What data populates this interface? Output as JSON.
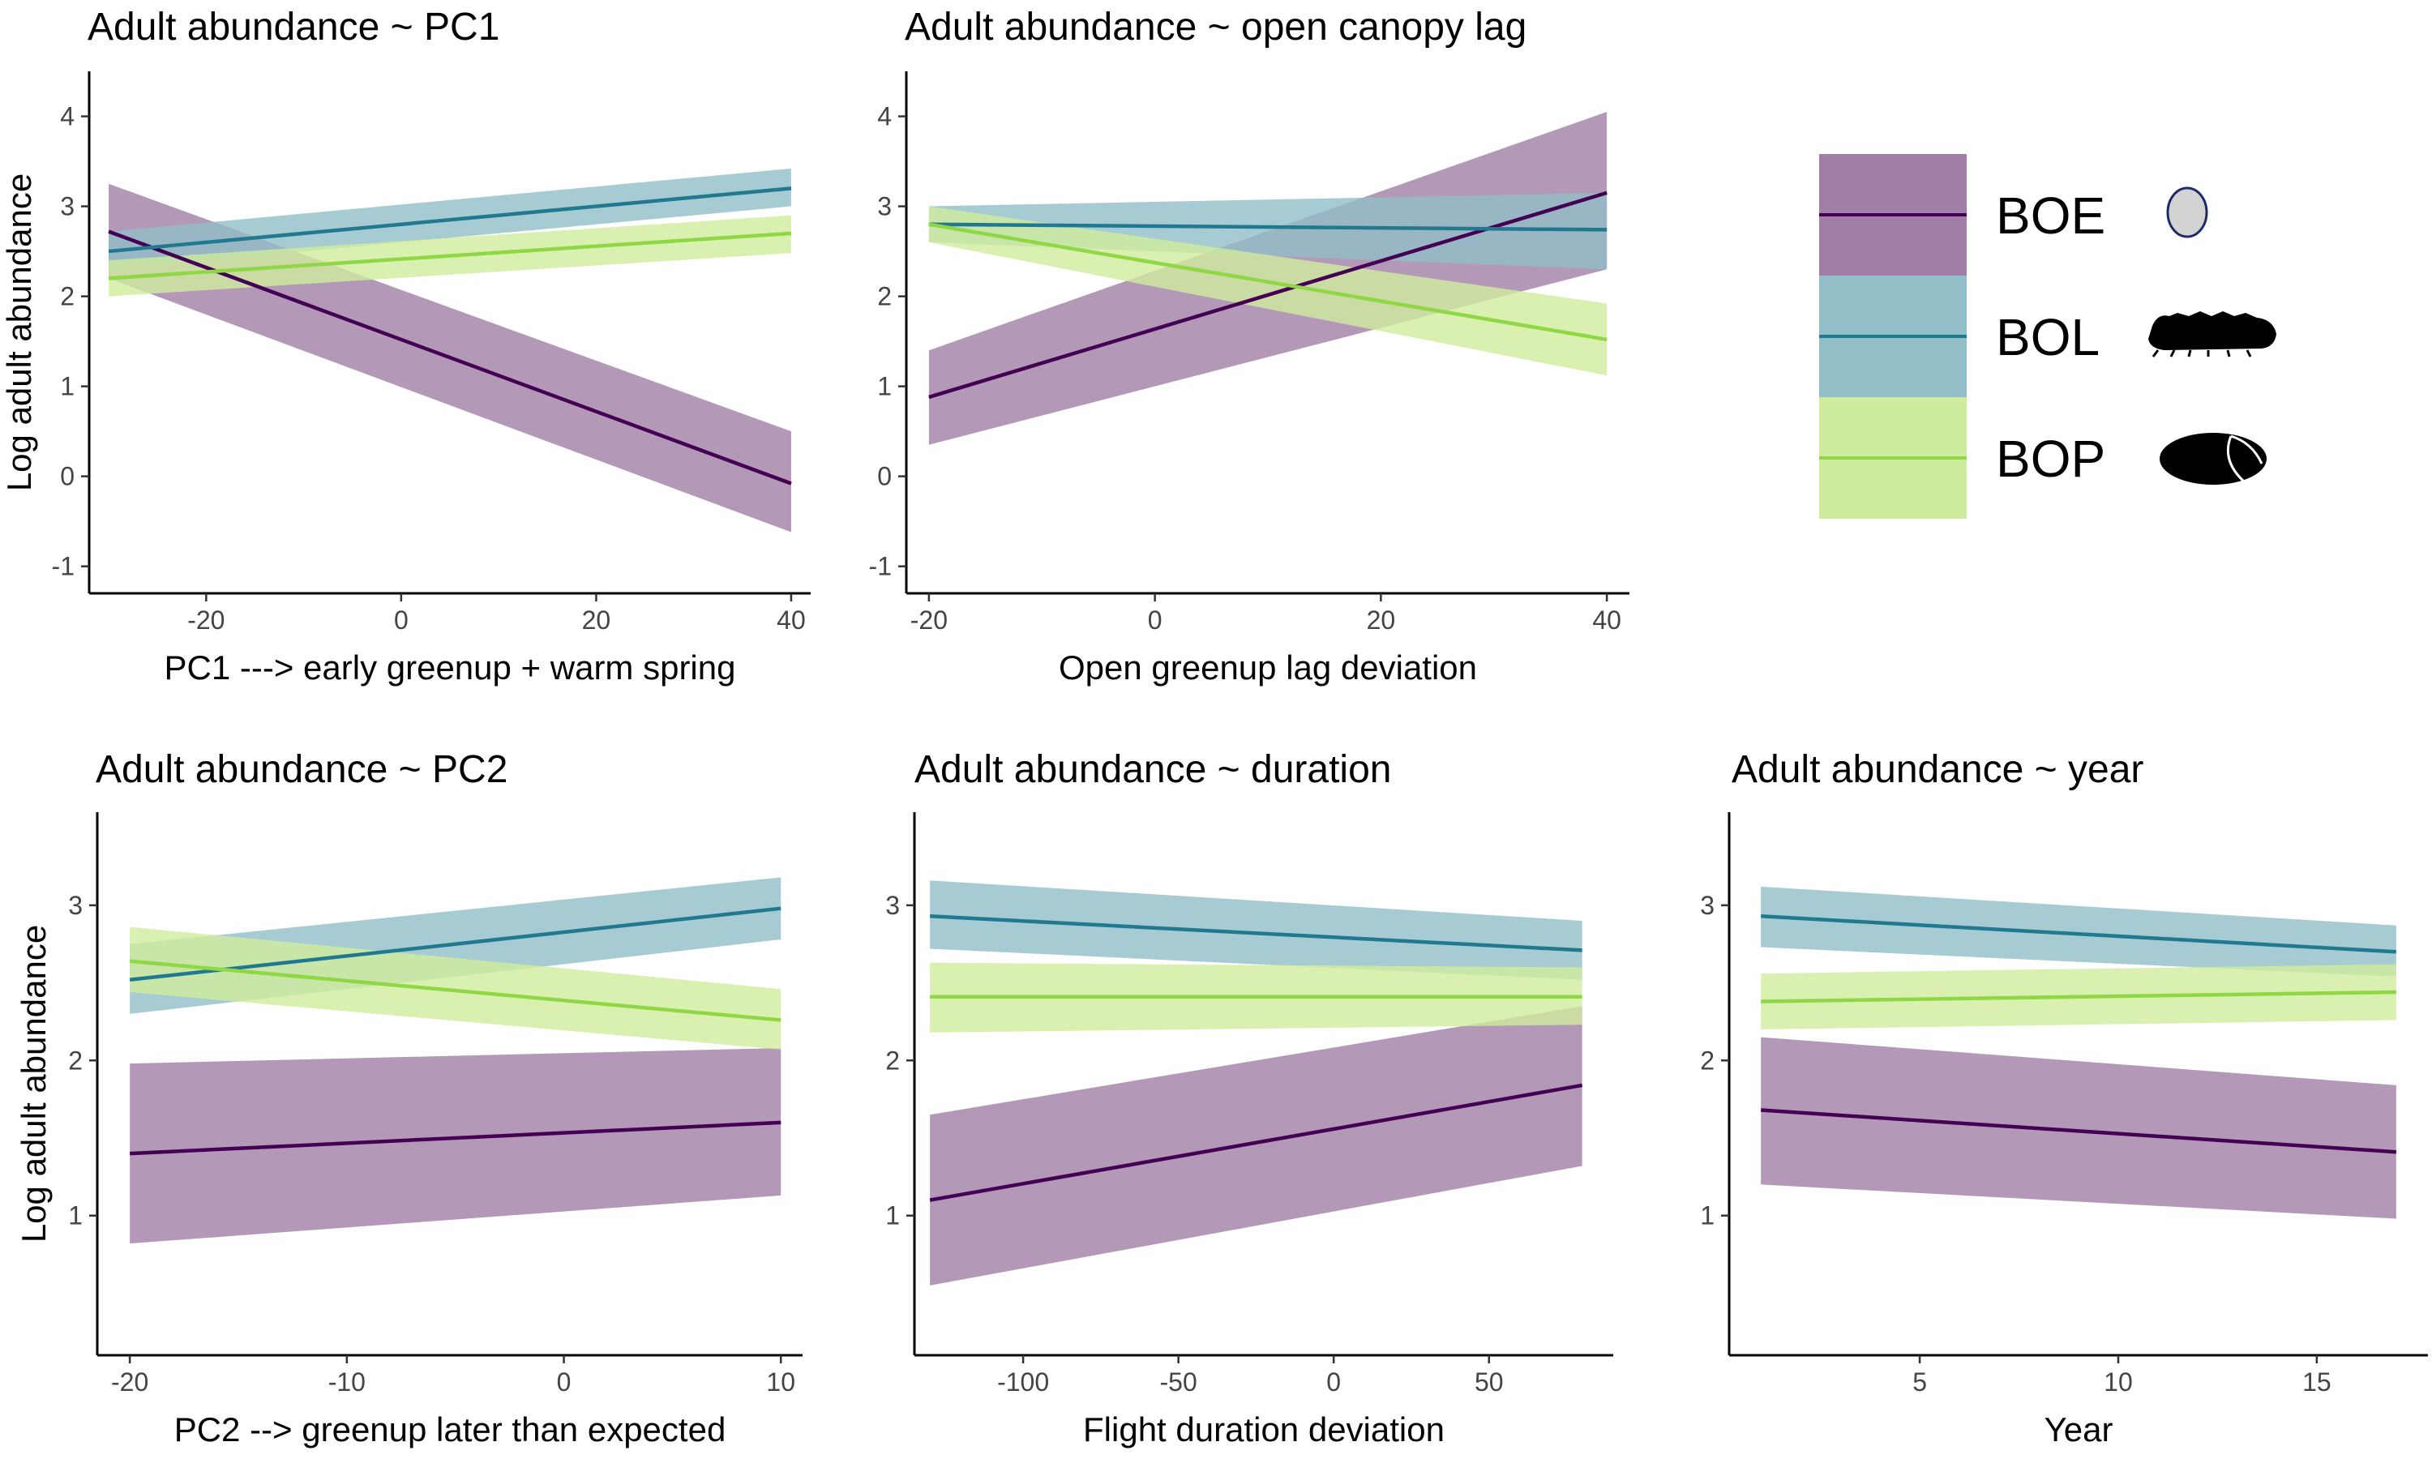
{
  "colors": {
    "BOE": "#440154",
    "BOL": "#21798f",
    "BOP": "#8fd744",
    "BOE_band": "#a07ea6",
    "BOL_band": "#91bec7",
    "BOP_band": "#cfec9e"
  },
  "legend": {
    "entries": [
      {
        "label": "BOE",
        "icon": "egg-icon"
      },
      {
        "label": "BOL",
        "icon": "larva-icon"
      },
      {
        "label": "BOP",
        "icon": "pupa-icon"
      }
    ]
  },
  "chart_data": [
    {
      "type": "line",
      "title": "Adult abundance ~ PC1",
      "xlabel": "PC1 ---> early greenup + warm spring",
      "ylabel": "Log adult abundance",
      "xlim": [
        -32,
        42
      ],
      "ylim": [
        -1.3,
        4.5
      ],
      "xticks": [
        -20,
        0,
        20,
        40
      ],
      "yticks": [
        -1,
        0,
        1,
        2,
        3,
        4
      ],
      "series": [
        {
          "name": "BOE",
          "x": [
            -30,
            40
          ],
          "y": [
            2.72,
            -0.08
          ],
          "lo": [
            2.2,
            -0.62
          ],
          "hi": [
            3.25,
            0.5
          ]
        },
        {
          "name": "BOL",
          "x": [
            -30,
            40
          ],
          "y": [
            2.5,
            3.2
          ],
          "lo": [
            2.3,
            3.0
          ],
          "hi": [
            2.72,
            3.42
          ]
        },
        {
          "name": "BOP",
          "x": [
            -30,
            40
          ],
          "y": [
            2.2,
            2.7
          ],
          "lo": [
            2.0,
            2.48
          ],
          "hi": [
            2.4,
            2.9
          ]
        }
      ]
    },
    {
      "type": "line",
      "title": "Adult abundance ~ open canopy lag",
      "xlabel": "Open greenup lag deviation",
      "ylabel": "",
      "xlim": [
        -22,
        42
      ],
      "ylim": [
        -1.3,
        4.5
      ],
      "xticks": [
        -20,
        0,
        20,
        40
      ],
      "yticks": [
        -1,
        0,
        1,
        2,
        3,
        4
      ],
      "series": [
        {
          "name": "BOE",
          "x": [
            -20,
            40
          ],
          "y": [
            0.88,
            3.15
          ],
          "lo": [
            0.35,
            2.3
          ],
          "hi": [
            1.4,
            4.05
          ]
        },
        {
          "name": "BOL",
          "x": [
            -20,
            40
          ],
          "y": [
            2.8,
            2.74
          ],
          "lo": [
            2.6,
            2.3
          ],
          "hi": [
            3.0,
            3.15
          ]
        },
        {
          "name": "BOP",
          "x": [
            -20,
            40
          ],
          "y": [
            2.8,
            1.52
          ],
          "lo": [
            2.6,
            1.12
          ],
          "hi": [
            3.0,
            1.92
          ]
        }
      ]
    },
    {
      "type": "line",
      "title": "Adult abundance ~ PC2",
      "xlabel": "PC2 --> greenup later than expected",
      "ylabel": "Log adult abundance",
      "xlim": [
        -21.5,
        11
      ],
      "ylim": [
        0.1,
        3.6
      ],
      "xticks": [
        -20,
        -10,
        0,
        10
      ],
      "yticks": [
        1,
        2,
        3
      ],
      "series": [
        {
          "name": "BOE",
          "x": [
            -20,
            10
          ],
          "y": [
            1.4,
            1.6
          ],
          "lo": [
            0.82,
            1.13
          ],
          "hi": [
            1.98,
            2.08
          ]
        },
        {
          "name": "BOL",
          "x": [
            -20,
            10
          ],
          "y": [
            2.52,
            2.98
          ],
          "lo": [
            2.3,
            2.78
          ],
          "hi": [
            2.75,
            3.18
          ]
        },
        {
          "name": "BOP",
          "x": [
            -20,
            10
          ],
          "y": [
            2.64,
            2.26
          ],
          "lo": [
            2.44,
            2.07
          ],
          "hi": [
            2.86,
            2.46
          ]
        }
      ]
    },
    {
      "type": "line",
      "title": "Adult abundance ~ duration",
      "xlabel": "Flight duration deviation",
      "ylabel": "",
      "xlim": [
        -135,
        90
      ],
      "ylim": [
        0.1,
        3.6
      ],
      "xticks": [
        -100,
        -50,
        0,
        50
      ],
      "yticks": [
        1,
        2,
        3
      ],
      "series": [
        {
          "name": "BOE",
          "x": [
            -130,
            80
          ],
          "y": [
            1.1,
            1.84
          ],
          "lo": [
            0.55,
            1.32
          ],
          "hi": [
            1.65,
            2.35
          ]
        },
        {
          "name": "BOL",
          "x": [
            -130,
            80
          ],
          "y": [
            2.93,
            2.71
          ],
          "lo": [
            2.72,
            2.52
          ],
          "hi": [
            3.16,
            2.9
          ]
        },
        {
          "name": "BOP",
          "x": [
            -130,
            80
          ],
          "y": [
            2.41,
            2.41
          ],
          "lo": [
            2.18,
            2.23
          ],
          "hi": [
            2.63,
            2.6
          ]
        }
      ]
    },
    {
      "type": "line",
      "title": "Adult abundance ~ year",
      "xlabel": "Year",
      "ylabel": "",
      "xlim": [
        0.2,
        17.8
      ],
      "ylim": [
        0.1,
        3.6
      ],
      "xticks": [
        5,
        10,
        15
      ],
      "yticks": [
        1,
        2,
        3
      ],
      "series": [
        {
          "name": "BOE",
          "x": [
            1,
            17
          ],
          "y": [
            1.68,
            1.41
          ],
          "lo": [
            1.2,
            0.98
          ],
          "hi": [
            2.15,
            1.84
          ]
        },
        {
          "name": "BOL",
          "x": [
            1,
            17
          ],
          "y": [
            2.93,
            2.7
          ],
          "lo": [
            2.73,
            2.54
          ],
          "hi": [
            3.12,
            2.87
          ]
        },
        {
          "name": "BOP",
          "x": [
            1,
            17
          ],
          "y": [
            2.38,
            2.44
          ],
          "lo": [
            2.2,
            2.26
          ],
          "hi": [
            2.56,
            2.62
          ]
        }
      ]
    }
  ]
}
